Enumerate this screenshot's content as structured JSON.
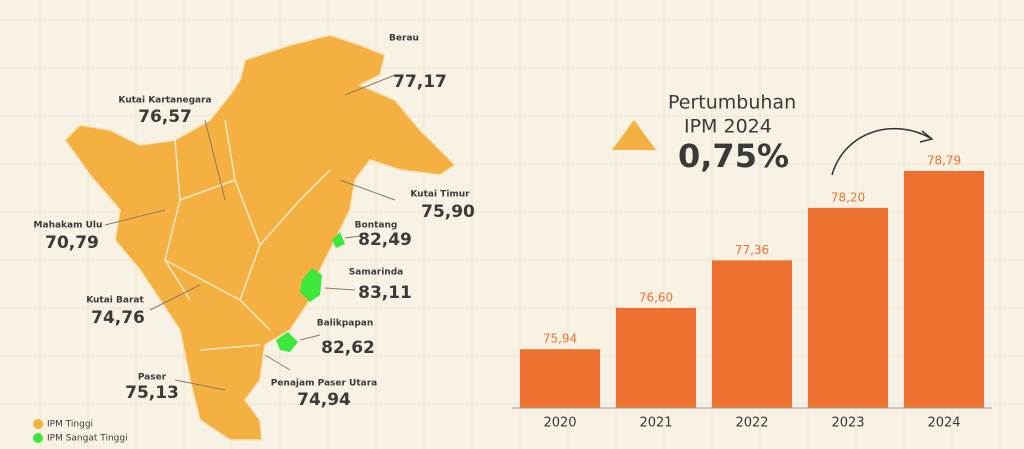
{
  "map": {
    "regions": [
      {
        "name": "Berau",
        "value": "77,17"
      },
      {
        "name": "Kutai Kartanegara",
        "value": "76,57"
      },
      {
        "name": "Mahakam Ulu",
        "value": "70,79"
      },
      {
        "name": "Kutai Barat",
        "value": "74,76"
      },
      {
        "name": "Paser",
        "value": "75,13"
      },
      {
        "name": "Kutai Timur",
        "value": "75,90"
      },
      {
        "name": "Bontang",
        "value": "82,49"
      },
      {
        "name": "Samarinda",
        "value": "83,11"
      },
      {
        "name": "Balikpapan",
        "value": "82,62"
      },
      {
        "name": "Penajam Paser Utara",
        "value": "74,94"
      }
    ],
    "legend": [
      {
        "name": "IPM Tinggi",
        "color": "#f5b042"
      },
      {
        "name": "IPM Sangat Tinggi",
        "color": "#3ee83a"
      }
    ]
  },
  "highlight": {
    "line1": "Pertumbuhan",
    "line2": "IPM 2024",
    "value": "0,75%"
  },
  "chart_data": {
    "type": "bar",
    "categories": [
      "2020",
      "2021",
      "2022",
      "2023",
      "2024"
    ],
    "values": [
      75.94,
      76.6,
      77.36,
      78.2,
      78.79
    ],
    "value_labels": [
      "75,94",
      "76,60",
      "77,36",
      "78,20",
      "78,79"
    ],
    "color": "#ee7131",
    "ylim": [
      75,
      79
    ]
  }
}
